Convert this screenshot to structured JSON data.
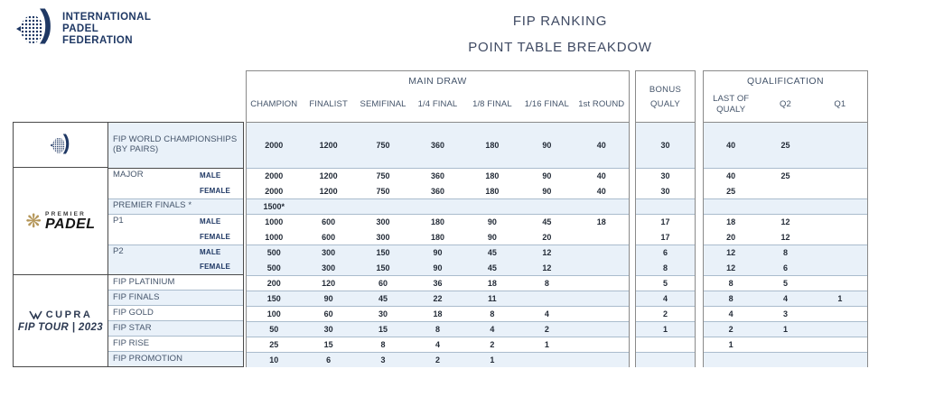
{
  "brand": {
    "name_lines": [
      "INTERNATIONAL",
      "PADEL",
      "FEDERATION"
    ]
  },
  "title": {
    "line1": "FIP RANKING",
    "line2": "POINT TABLE BREAKDOW"
  },
  "header": {
    "main_draw": "MAIN DRAW",
    "main_cols": [
      "CHAMPION",
      "FINALIST",
      "SEMIFINAL",
      "1/4 FINAL",
      "1/8 FINAL",
      "1/16 FINAL",
      "1st ROUND"
    ],
    "bonus_line1": "BONUS",
    "bonus_line2": "QUALY",
    "qualification": "QUALIFICATION",
    "qual_cols": [
      "LAST OF QUALY",
      "Q2",
      "Q1"
    ]
  },
  "logos": {
    "fip_mark": "fip-federation-mark",
    "premier": {
      "top": "PREMIER",
      "main": "PADEL"
    },
    "cupra": {
      "word": "CUPRA",
      "line2": "FIP TOUR | 2023"
    }
  },
  "colors": {
    "navy": "#1f3864",
    "slate": "#44546a",
    "stripe": "#e9f1f9",
    "gold": "#b5975a"
  },
  "rows": [
    {
      "label": "FIP WORLD CHAMPIONSHIPS (BY PAIRS)",
      "gender": "",
      "main": [
        "2000",
        "1200",
        "750",
        "360",
        "180",
        "90",
        "40"
      ],
      "bonus": "30",
      "qual": [
        "40",
        "25",
        ""
      ],
      "shade": true,
      "tall": true,
      "sep": false,
      "group": false
    },
    {
      "label": "MAJOR",
      "gender": "MALE",
      "main": [
        "2000",
        "1200",
        "750",
        "360",
        "180",
        "90",
        "40"
      ],
      "bonus": "30",
      "qual": [
        "40",
        "25",
        ""
      ],
      "shade": false,
      "tall": false,
      "sep": true,
      "group": true
    },
    {
      "label": "",
      "gender": "FEMALE",
      "main": [
        "2000",
        "1200",
        "750",
        "360",
        "180",
        "90",
        "40"
      ],
      "bonus": "30",
      "qual": [
        "25",
        "",
        ""
      ],
      "shade": false,
      "tall": false,
      "sep": false,
      "group": false
    },
    {
      "label": "PREMIER FINALS *",
      "gender": "",
      "main": [
        "1500*",
        "",
        "",
        "",
        "",
        "",
        ""
      ],
      "bonus": "",
      "qual": [
        "",
        "",
        ""
      ],
      "shade": true,
      "tall": false,
      "sep": true,
      "group": false
    },
    {
      "label": "P1",
      "gender": "MALE",
      "main": [
        "1000",
        "600",
        "300",
        "180",
        "90",
        "45",
        "18"
      ],
      "bonus": "17",
      "qual": [
        "18",
        "12",
        ""
      ],
      "shade": false,
      "tall": false,
      "sep": true,
      "group": false
    },
    {
      "label": "",
      "gender": "FEMALE",
      "main": [
        "1000",
        "600",
        "300",
        "180",
        "90",
        "20",
        ""
      ],
      "bonus": "17",
      "qual": [
        "20",
        "12",
        ""
      ],
      "shade": false,
      "tall": false,
      "sep": false,
      "group": false
    },
    {
      "label": "P2",
      "gender": "MALE",
      "main": [
        "500",
        "300",
        "150",
        "90",
        "45",
        "12",
        ""
      ],
      "bonus": "6",
      "qual": [
        "12",
        "8",
        ""
      ],
      "shade": true,
      "tall": false,
      "sep": true,
      "group": false
    },
    {
      "label": "",
      "gender": "FEMALE",
      "main": [
        "500",
        "300",
        "150",
        "90",
        "45",
        "12",
        ""
      ],
      "bonus": "8",
      "qual": [
        "12",
        "6",
        ""
      ],
      "shade": true,
      "tall": false,
      "sep": false,
      "group": false
    },
    {
      "label": "FIP PLATINIUM",
      "gender": "",
      "main": [
        "200",
        "120",
        "60",
        "36",
        "18",
        "8",
        ""
      ],
      "bonus": "5",
      "qual": [
        "8",
        "5",
        ""
      ],
      "shade": false,
      "tall": false,
      "sep": true,
      "group": true
    },
    {
      "label": "FIP FINALS",
      "gender": "",
      "main": [
        "150",
        "90",
        "45",
        "22",
        "11",
        "",
        ""
      ],
      "bonus": "4",
      "qual": [
        "8",
        "4",
        "1"
      ],
      "shade": true,
      "tall": false,
      "sep": true,
      "group": false
    },
    {
      "label": "FIP GOLD",
      "gender": "",
      "main": [
        "100",
        "60",
        "30",
        "18",
        "8",
        "4",
        ""
      ],
      "bonus": "2",
      "qual": [
        "4",
        "3",
        ""
      ],
      "shade": false,
      "tall": false,
      "sep": true,
      "group": false
    },
    {
      "label": "FIP STAR",
      "gender": "",
      "main": [
        "50",
        "30",
        "15",
        "8",
        "4",
        "2",
        ""
      ],
      "bonus": "1",
      "qual": [
        "2",
        "1",
        ""
      ],
      "shade": true,
      "tall": false,
      "sep": true,
      "group": false
    },
    {
      "label": "FIP RISE",
      "gender": "",
      "main": [
        "25",
        "15",
        "8",
        "4",
        "2",
        "1",
        ""
      ],
      "bonus": "",
      "qual": [
        "1",
        "",
        ""
      ],
      "shade": false,
      "tall": false,
      "sep": true,
      "group": false
    },
    {
      "label": "FIP PROMOTION",
      "gender": "",
      "main": [
        "10",
        "6",
        "3",
        "2",
        "1",
        "",
        ""
      ],
      "bonus": "",
      "qual": [
        "",
        "",
        ""
      ],
      "shade": true,
      "tall": false,
      "sep": true,
      "group": false
    }
  ]
}
